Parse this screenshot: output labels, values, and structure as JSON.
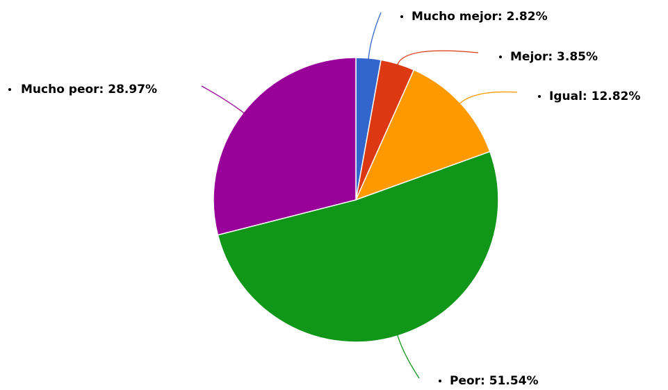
{
  "chart_data": {
    "type": "pie",
    "values": [
      2.82,
      3.85,
      12.82,
      51.54,
      28.97
    ],
    "value_labels": [
      "Mucho mejor: 2.82%",
      "Mejor: 3.85%",
      "Igual: 12.82%",
      "Peor: 51.54%",
      "Mucho peor: 28.97%"
    ],
    "colors": [
      "#3366cc",
      "#dc3912",
      "#ff9900",
      "#109618",
      "#990099"
    ]
  }
}
